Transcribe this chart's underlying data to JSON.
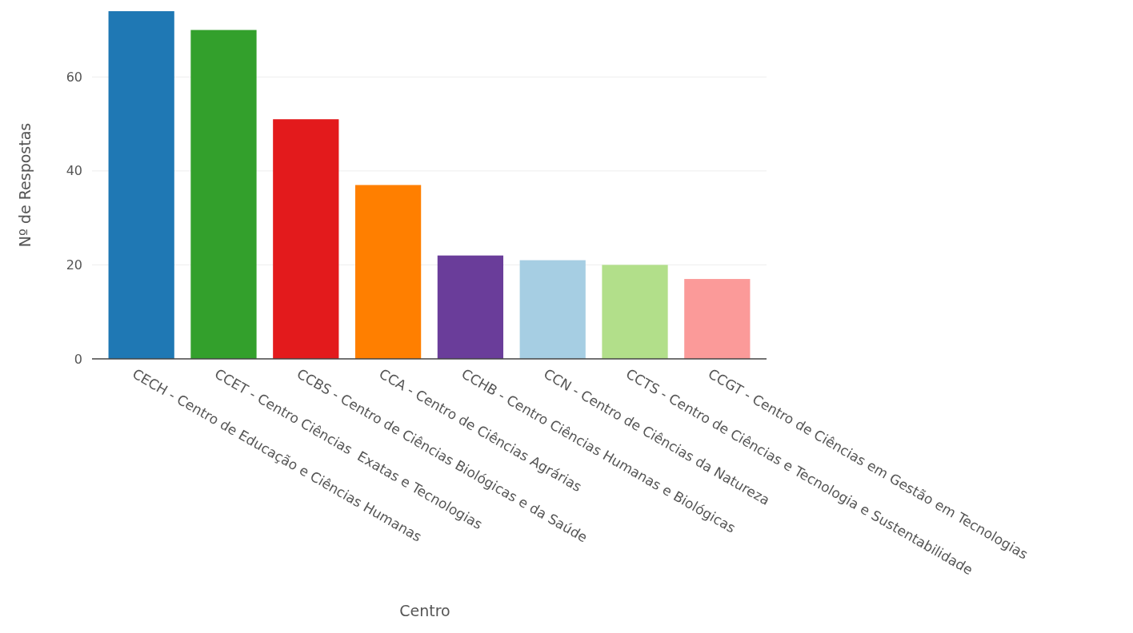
{
  "chart_data": {
    "type": "bar",
    "xlabel": "Centro",
    "ylabel": "Nº de Respostas",
    "categories": [
      "CECH - Centro de Educação e Ciências Humanas",
      "CCET - Centro Ciências  Exatas e Tecnologias",
      "CCBS - Centro de Ciências Biológicas e da Saúde",
      "CCA - Centro de Ciências Agrárias",
      "CCHB - Centro Ciências Humanas e Biológicas",
      "CCN - Centro de Ciências da Natureza",
      "CCTS - Centro de Ciências e Tecnologia e Sustentabilidade",
      "CCGT - Centro de Ciências em Gestão em Tecnologias"
    ],
    "values": [
      74,
      70,
      51,
      37,
      22,
      21,
      20,
      17
    ],
    "colors": [
      "#1f78b4",
      "#33a02c",
      "#e31a1c",
      "#ff7f00",
      "#6a3d9a",
      "#a6cee3",
      "#b2df8a",
      "#fb9a99"
    ],
    "ylim": [
      0,
      74
    ],
    "yticks": [
      0,
      20,
      40,
      60
    ],
    "grid": "y"
  }
}
